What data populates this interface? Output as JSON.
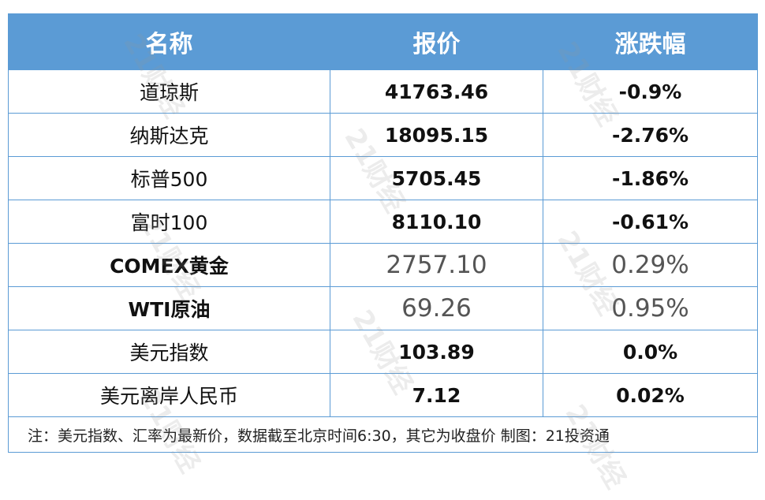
{
  "table": {
    "header": [
      "名称",
      "报价",
      "涨跌幅"
    ],
    "rows": [
      [
        "道琼斯",
        "41763.46",
        "-0.9%"
      ],
      [
        "纳斯达克",
        "18095.15",
        "-2.76%"
      ],
      [
        "标普500",
        "5705.45",
        "-1.86%"
      ],
      [
        "富时100",
        "8110.10",
        "-0.61%"
      ],
      [
        "COMEX黄金",
        "2757.10",
        "0.29%"
      ],
      [
        "WTI原油",
        "69.26",
        "0.95%"
      ],
      [
        "美元指数",
        "103.89",
        "0.0%"
      ],
      [
        "美元离岸人民币",
        "7.12",
        "0.02%"
      ]
    ],
    "footnote": "注：美元指数、汇率为最新价，数据截至北京时间6:30，其它为收盘价 制图：21投资通"
  },
  "watermark": "21财经"
}
